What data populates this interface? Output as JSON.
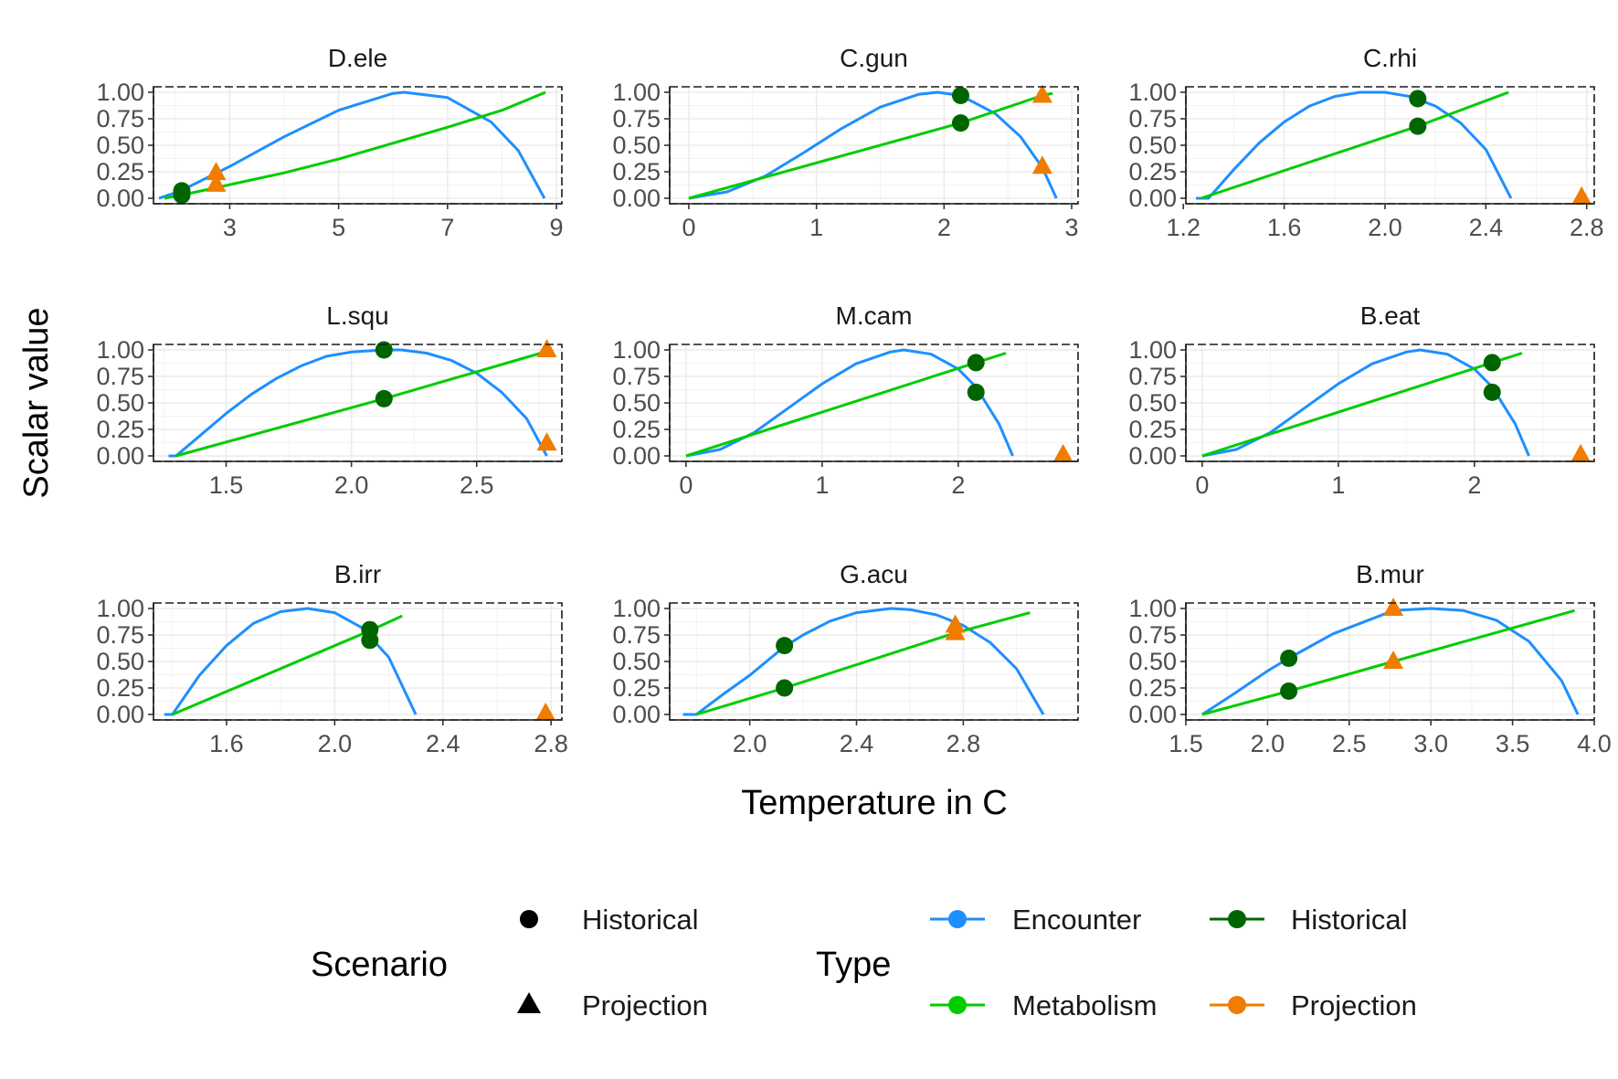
{
  "chart_data": {
    "type": "line",
    "xlabel": "Temperature in C",
    "ylabel": "Scalar value",
    "colors": {
      "Encounter": "#1E8FFF",
      "Metabolism": "#00CC00",
      "Historical": "#006400",
      "Projection": "#F07C00"
    },
    "legend": {
      "position": "bottom",
      "scenario_title": "Scenario",
      "scenario_items": [
        "Historical",
        "Projection"
      ],
      "type_title": "Type",
      "type_items": [
        "Encounter",
        "Metabolism",
        "Historical",
        "Projection"
      ]
    },
    "panels": [
      {
        "title": "D.ele",
        "xlim": [
          1.6,
          9.1
        ],
        "ylim": [
          0,
          1
        ],
        "xticks": [
          3,
          5,
          7,
          9
        ],
        "xtick_labels": [
          "3",
          "5",
          "7",
          "9"
        ],
        "yticks": [
          0,
          0.25,
          0.5,
          0.75,
          1
        ],
        "ytick_labels": [
          "0.00",
          "0.25",
          "0.50",
          "0.75",
          "1.00"
        ],
        "encounter": [
          [
            1.7,
            0
          ],
          [
            2.1,
            0.07
          ],
          [
            3,
            0.3
          ],
          [
            4,
            0.58
          ],
          [
            5,
            0.83
          ],
          [
            6,
            0.99
          ],
          [
            6.2,
            1
          ],
          [
            7,
            0.95
          ],
          [
            7.8,
            0.72
          ],
          [
            8.3,
            0.45
          ],
          [
            8.78,
            0
          ]
        ],
        "metabolism": [
          [
            1.8,
            0
          ],
          [
            2.12,
            0.03
          ],
          [
            2.75,
            0.1
          ],
          [
            4,
            0.24
          ],
          [
            5,
            0.37
          ],
          [
            6,
            0.52
          ],
          [
            7,
            0.67
          ],
          [
            8,
            0.83
          ],
          [
            8.8,
            1
          ]
        ],
        "points": [
          {
            "x": 2.12,
            "y": 0.07,
            "scenario": "Historical"
          },
          {
            "x": 2.12,
            "y": 0.03,
            "scenario": "Historical"
          },
          {
            "x": 2.75,
            "y": 0.24,
            "scenario": "Projection"
          },
          {
            "x": 2.75,
            "y": 0.13,
            "scenario": "Projection"
          }
        ]
      },
      {
        "title": "C.gun",
        "xlim": [
          -0.15,
          3.05
        ],
        "ylim": [
          0,
          1
        ],
        "xticks": [
          0,
          1,
          2,
          3
        ],
        "xtick_labels": [
          "0",
          "1",
          "2",
          "3"
        ],
        "yticks": [
          0,
          0.25,
          0.5,
          0.75,
          1
        ],
        "ytick_labels": [
          "0.00",
          "0.25",
          "0.50",
          "0.75",
          "1.00"
        ],
        "encounter": [
          [
            0,
            0
          ],
          [
            0.3,
            0.06
          ],
          [
            0.6,
            0.21
          ],
          [
            0.9,
            0.43
          ],
          [
            1.2,
            0.66
          ],
          [
            1.5,
            0.86
          ],
          [
            1.8,
            0.98
          ],
          [
            1.95,
            1
          ],
          [
            2.13,
            0.97
          ],
          [
            2.4,
            0.8
          ],
          [
            2.6,
            0.58
          ],
          [
            2.77,
            0.29
          ],
          [
            2.88,
            0
          ]
        ],
        "metabolism": [
          [
            0,
            0
          ],
          [
            2.13,
            0.71
          ],
          [
            2.77,
            0.97
          ],
          [
            2.85,
            0.99
          ]
        ],
        "points": [
          {
            "x": 2.13,
            "y": 0.97,
            "scenario": "Historical"
          },
          {
            "x": 2.13,
            "y": 0.71,
            "scenario": "Historical"
          },
          {
            "x": 2.77,
            "y": 0.97,
            "scenario": "Projection"
          },
          {
            "x": 2.77,
            "y": 0.3,
            "scenario": "Projection"
          }
        ]
      },
      {
        "title": "C.rhi",
        "xlim": [
          1.21,
          2.83
        ],
        "ylim": [
          0,
          1
        ],
        "xticks": [
          1.2,
          1.6,
          2.0,
          2.4,
          2.8
        ],
        "xtick_labels": [
          "1.2",
          "1.6",
          "2.0",
          "2.4",
          "2.8"
        ],
        "yticks": [
          0,
          0.25,
          0.5,
          0.75,
          1
        ],
        "ytick_labels": [
          "0.00",
          "0.25",
          "0.50",
          "0.75",
          "1.00"
        ],
        "encounter": [
          [
            1.25,
            0
          ],
          [
            1.3,
            0
          ],
          [
            1.4,
            0.27
          ],
          [
            1.5,
            0.52
          ],
          [
            1.6,
            0.72
          ],
          [
            1.7,
            0.87
          ],
          [
            1.8,
            0.96
          ],
          [
            1.9,
            1
          ],
          [
            2.0,
            1
          ],
          [
            2.1,
            0.96
          ],
          [
            2.2,
            0.87
          ],
          [
            2.3,
            0.71
          ],
          [
            2.4,
            0.46
          ],
          [
            2.5,
            0
          ]
        ],
        "metabolism": [
          [
            1.27,
            0
          ],
          [
            2.13,
            0.68
          ],
          [
            2.49,
            1
          ]
        ],
        "points": [
          {
            "x": 2.13,
            "y": 0.94,
            "scenario": "Historical"
          },
          {
            "x": 2.13,
            "y": 0.68,
            "scenario": "Historical"
          },
          {
            "x": 2.78,
            "y": 0.01,
            "scenario": "Projection"
          }
        ]
      },
      {
        "title": "L.squ",
        "xlim": [
          1.21,
          2.84
        ],
        "ylim": [
          0,
          1
        ],
        "xticks": [
          1.5,
          2.0,
          2.5
        ],
        "xtick_labels": [
          "1.5",
          "2.0",
          "2.5"
        ],
        "yticks": [
          0,
          0.25,
          0.5,
          0.75,
          1
        ],
        "ytick_labels": [
          "0.00",
          "0.25",
          "0.50",
          "0.75",
          "1.00"
        ],
        "encounter": [
          [
            1.27,
            0
          ],
          [
            1.3,
            0
          ],
          [
            1.4,
            0.2
          ],
          [
            1.5,
            0.4
          ],
          [
            1.6,
            0.58
          ],
          [
            1.7,
            0.73
          ],
          [
            1.8,
            0.85
          ],
          [
            1.9,
            0.94
          ],
          [
            2.0,
            0.98
          ],
          [
            2.13,
            1
          ],
          [
            2.2,
            1
          ],
          [
            2.3,
            0.97
          ],
          [
            2.4,
            0.9
          ],
          [
            2.5,
            0.78
          ],
          [
            2.6,
            0.6
          ],
          [
            2.7,
            0.35
          ],
          [
            2.78,
            0
          ]
        ],
        "metabolism": [
          [
            1.3,
            0
          ],
          [
            2.13,
            0.54
          ],
          [
            2.8,
            1
          ]
        ],
        "points": [
          {
            "x": 2.13,
            "y": 1.0,
            "scenario": "Historical"
          },
          {
            "x": 2.13,
            "y": 0.54,
            "scenario": "Historical"
          },
          {
            "x": 2.78,
            "y": 1.0,
            "scenario": "Projection"
          },
          {
            "x": 2.78,
            "y": 0.12,
            "scenario": "Projection"
          }
        ]
      },
      {
        "title": "M.cam",
        "xlim": [
          -0.12,
          2.88
        ],
        "ylim": [
          0,
          1
        ],
        "xticks": [
          0,
          1,
          2
        ],
        "xtick_labels": [
          "0",
          "1",
          "2"
        ],
        "yticks": [
          0,
          0.25,
          0.5,
          0.75,
          1
        ],
        "ytick_labels": [
          "0.00",
          "0.25",
          "0.50",
          "0.75",
          "1.00"
        ],
        "encounter": [
          [
            0,
            0
          ],
          [
            0.25,
            0.06
          ],
          [
            0.5,
            0.22
          ],
          [
            0.75,
            0.45
          ],
          [
            1.0,
            0.68
          ],
          [
            1.25,
            0.87
          ],
          [
            1.5,
            0.98
          ],
          [
            1.6,
            1
          ],
          [
            1.8,
            0.96
          ],
          [
            2.0,
            0.82
          ],
          [
            2.13,
            0.65
          ],
          [
            2.3,
            0.3
          ],
          [
            2.4,
            0
          ]
        ],
        "metabolism": [
          [
            0,
            0
          ],
          [
            2.13,
            0.88
          ],
          [
            2.35,
            0.97
          ]
        ],
        "points": [
          {
            "x": 2.13,
            "y": 0.88,
            "scenario": "Historical"
          },
          {
            "x": 2.13,
            "y": 0.6,
            "scenario": "Historical"
          },
          {
            "x": 2.77,
            "y": 0.01,
            "scenario": "Projection"
          }
        ]
      },
      {
        "title": "B.eat",
        "xlim": [
          -0.12,
          2.88
        ],
        "ylim": [
          0,
          1
        ],
        "xticks": [
          0,
          1,
          2
        ],
        "xtick_labels": [
          "0",
          "1",
          "2"
        ],
        "yticks": [
          0,
          0.25,
          0.5,
          0.75,
          1
        ],
        "ytick_labels": [
          "0.00",
          "0.25",
          "0.50",
          "0.75",
          "1.00"
        ],
        "encounter": [
          [
            0,
            0
          ],
          [
            0.25,
            0.06
          ],
          [
            0.5,
            0.22
          ],
          [
            0.75,
            0.45
          ],
          [
            1.0,
            0.68
          ],
          [
            1.25,
            0.87
          ],
          [
            1.5,
            0.98
          ],
          [
            1.6,
            1
          ],
          [
            1.8,
            0.96
          ],
          [
            2.0,
            0.82
          ],
          [
            2.13,
            0.65
          ],
          [
            2.3,
            0.3
          ],
          [
            2.4,
            0
          ]
        ],
        "metabolism": [
          [
            0,
            0
          ],
          [
            2.13,
            0.88
          ],
          [
            2.35,
            0.97
          ]
        ],
        "points": [
          {
            "x": 2.13,
            "y": 0.88,
            "scenario": "Historical"
          },
          {
            "x": 2.13,
            "y": 0.6,
            "scenario": "Historical"
          },
          {
            "x": 2.78,
            "y": 0.01,
            "scenario": "Projection"
          }
        ]
      },
      {
        "title": "B.irr",
        "xlim": [
          1.33,
          2.84
        ],
        "ylim": [
          0,
          1
        ],
        "xticks": [
          1.6,
          2.0,
          2.4,
          2.8
        ],
        "xtick_labels": [
          "1.6",
          "2.0",
          "2.4",
          "2.8"
        ],
        "yticks": [
          0,
          0.25,
          0.5,
          0.75,
          1
        ],
        "ytick_labels": [
          "0.00",
          "0.25",
          "0.50",
          "0.75",
          "1.00"
        ],
        "encounter": [
          [
            1.37,
            0
          ],
          [
            1.4,
            0
          ],
          [
            1.5,
            0.37
          ],
          [
            1.6,
            0.65
          ],
          [
            1.7,
            0.86
          ],
          [
            1.8,
            0.97
          ],
          [
            1.9,
            1
          ],
          [
            2.0,
            0.96
          ],
          [
            2.1,
            0.82
          ],
          [
            2.2,
            0.54
          ],
          [
            2.3,
            0
          ]
        ],
        "metabolism": [
          [
            1.4,
            0
          ],
          [
            2.13,
            0.79
          ],
          [
            2.25,
            0.93
          ]
        ],
        "points": [
          {
            "x": 2.13,
            "y": 0.8,
            "scenario": "Historical"
          },
          {
            "x": 2.13,
            "y": 0.7,
            "scenario": "Historical"
          },
          {
            "x": 2.78,
            "y": 0.01,
            "scenario": "Projection"
          }
        ]
      },
      {
        "title": "G.acu",
        "xlim": [
          1.7,
          3.23
        ],
        "ylim": [
          0,
          1
        ],
        "xticks": [
          2.0,
          2.4,
          2.8
        ],
        "xtick_labels": [
          "2.0",
          "2.4",
          "2.8"
        ],
        "yticks": [
          0,
          0.25,
          0.5,
          0.75,
          1
        ],
        "ytick_labels": [
          "0.00",
          "0.25",
          "0.50",
          "0.75",
          "1.00"
        ],
        "encounter": [
          [
            1.75,
            0
          ],
          [
            1.8,
            0
          ],
          [
            1.9,
            0.19
          ],
          [
            2.0,
            0.37
          ],
          [
            2.13,
            0.64
          ],
          [
            2.2,
            0.75
          ],
          [
            2.3,
            0.88
          ],
          [
            2.4,
            0.96
          ],
          [
            2.53,
            1
          ],
          [
            2.6,
            0.99
          ],
          [
            2.7,
            0.94
          ],
          [
            2.8,
            0.84
          ],
          [
            2.9,
            0.68
          ],
          [
            3.0,
            0.43
          ],
          [
            3.1,
            0
          ]
        ],
        "metabolism": [
          [
            1.8,
            0
          ],
          [
            2.13,
            0.25
          ],
          [
            2.77,
            0.77
          ],
          [
            3.05,
            0.96
          ]
        ],
        "points": [
          {
            "x": 2.13,
            "y": 0.65,
            "scenario": "Historical"
          },
          {
            "x": 2.13,
            "y": 0.25,
            "scenario": "Historical"
          },
          {
            "x": 2.77,
            "y": 0.84,
            "scenario": "Projection"
          },
          {
            "x": 2.77,
            "y": 0.77,
            "scenario": "Projection"
          }
        ]
      },
      {
        "title": "B.mur",
        "xlim": [
          1.5,
          4.0
        ],
        "ylim": [
          0,
          1
        ],
        "xticks": [
          1.5,
          2.0,
          2.5,
          3.0,
          3.5,
          4.0
        ],
        "xtick_labels": [
          "1.5",
          "2.0",
          "2.5",
          "3.0",
          "3.5",
          "4.0"
        ],
        "yticks": [
          0,
          0.25,
          0.5,
          0.75,
          1
        ],
        "ytick_labels": [
          "0.00",
          "0.25",
          "0.50",
          "0.75",
          "1.00"
        ],
        "encounter": [
          [
            1.6,
            0
          ],
          [
            1.8,
            0.2
          ],
          [
            2.0,
            0.41
          ],
          [
            2.13,
            0.53
          ],
          [
            2.4,
            0.76
          ],
          [
            2.77,
            0.98
          ],
          [
            3.0,
            1
          ],
          [
            3.2,
            0.98
          ],
          [
            3.4,
            0.89
          ],
          [
            3.6,
            0.69
          ],
          [
            3.8,
            0.32
          ],
          [
            3.9,
            0
          ]
        ],
        "metabolism": [
          [
            1.6,
            0
          ],
          [
            2.13,
            0.22
          ],
          [
            2.77,
            0.5
          ],
          [
            3.88,
            0.98
          ]
        ],
        "points": [
          {
            "x": 2.13,
            "y": 0.53,
            "scenario": "Historical"
          },
          {
            "x": 2.13,
            "y": 0.22,
            "scenario": "Historical"
          },
          {
            "x": 2.77,
            "y": 1.0,
            "scenario": "Projection"
          },
          {
            "x": 2.77,
            "y": 0.5,
            "scenario": "Projection"
          }
        ]
      }
    ]
  }
}
